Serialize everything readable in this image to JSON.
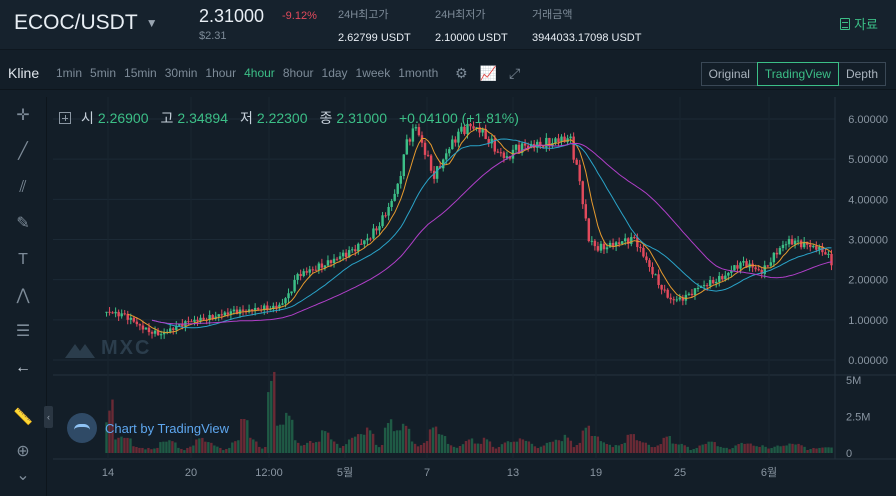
{
  "header": {
    "pair": "ECOC/USDT",
    "price": "2.31000",
    "price_usd": "$2.31",
    "change": "-9.12%",
    "high_label": "24H최고가",
    "high_value": "2.62799 USDT",
    "low_label": "24H최저가",
    "low_value": "2.10000 USDT",
    "volume_label": "거래금액",
    "volume_value": "3944033.17098 USDT",
    "doc_label": "자료"
  },
  "toolbar": {
    "title": "Kline",
    "intervals": [
      "1min",
      "5min",
      "15min",
      "30min",
      "1hour",
      "4hour",
      "8hour",
      "1day",
      "1week",
      "1month"
    ],
    "active_interval": "4hour",
    "views": [
      "Original",
      "TradingView",
      "Depth"
    ],
    "active_view": "TradingView"
  },
  "ohlc": {
    "open_label": "시",
    "open": "2.26900",
    "high_label": "고",
    "high": "2.34894",
    "low_label": "저",
    "low": "2.22300",
    "close_label": "종",
    "close": "2.31000",
    "change": "+0.04100 (+1.81%)"
  },
  "watermark": "MXC",
  "tv_badge": "Chart by TradingView",
  "colors": {
    "up": "#3cbf87",
    "down": "#e24a5c",
    "ma1": "#e69a2e",
    "ma2": "#2aa3c8",
    "ma3": "#b03fc8"
  },
  "chart_data": {
    "type": "candlestick",
    "price_ticks": [
      "6.00000",
      "5.00000",
      "4.00000",
      "3.00000",
      "2.00000",
      "1.00000",
      "0.00000"
    ],
    "price_range": [
      0,
      6
    ],
    "volume_ticks": [
      "5M",
      "2.5M",
      "0"
    ],
    "volume_range": [
      0,
      5000000
    ],
    "time_ticks": [
      "14",
      "20",
      "12:00",
      "5월",
      "7",
      "13",
      "19",
      "25",
      "6월"
    ],
    "close_series": [
      1.2,
      1.15,
      1.1,
      0.95,
      0.8,
      0.7,
      0.65,
      0.75,
      0.85,
      0.95,
      1.0,
      1.05,
      1.1,
      1.15,
      1.2,
      1.2,
      1.25,
      1.3,
      1.3,
      1.35,
      1.6,
      2.1,
      2.2,
      2.3,
      2.4,
      2.5,
      2.6,
      2.7,
      2.9,
      3.1,
      3.4,
      3.8,
      4.3,
      5.4,
      5.8,
      5.2,
      4.6,
      5.0,
      5.4,
      5.7,
      5.8,
      5.75,
      5.5,
      5.2,
      5.0,
      5.25,
      5.3,
      5.35,
      5.4,
      5.45,
      5.5,
      5.45,
      4.4,
      3.0,
      2.8,
      2.85,
      2.9,
      2.95,
      3.0,
      2.6,
      2.2,
      1.8,
      1.5,
      1.5,
      1.6,
      1.8,
      1.9,
      2.0,
      2.1,
      2.3,
      2.4,
      2.3,
      2.2,
      2.5,
      2.8,
      2.95,
      2.9,
      2.85,
      2.8,
      2.7,
      2.3
    ],
    "volume_series": [
      4.2,
      0.9,
      0.8,
      0.4,
      0.5,
      0.3,
      0.6,
      0.7,
      0.4,
      0.5,
      0.8,
      0.6,
      0.5,
      0.4,
      0.7,
      1.8,
      0.9,
      0.6,
      4.8,
      1.5,
      2.2,
      1.0,
      0.8,
      0.6,
      1.2,
      0.9,
      0.7,
      0.9,
      1.0,
      1.5,
      0.8,
      2.0,
      1.2,
      1.6,
      0.9,
      0.8,
      1.4,
      1.0,
      0.6,
      0.7,
      0.8,
      0.5,
      0.9,
      0.6,
      0.7,
      0.6,
      0.8,
      0.9,
      0.5,
      0.6,
      0.7,
      1.2,
      0.8,
      1.5,
      0.9,
      0.7,
      0.8,
      0.6,
      1.0,
      0.7,
      0.8,
      0.6,
      0.9,
      0.5,
      0.6,
      0.4,
      0.5,
      0.6,
      0.4,
      0.5,
      0.6,
      0.5,
      0.4,
      0.6,
      0.5,
      0.4,
      0.5,
      0.6,
      0.4,
      0.3,
      0.3
    ]
  }
}
